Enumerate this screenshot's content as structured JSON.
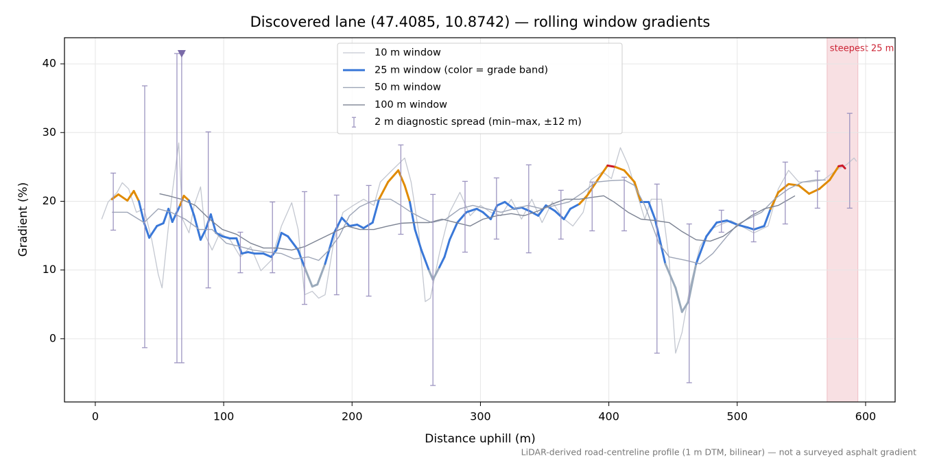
{
  "chart_data": {
    "type": "line",
    "title": "Discovered lane (47.4085, 10.8742) — rolling window gradients",
    "xlabel": "Distance uphill (m)",
    "ylabel": "Gradient (%)",
    "note": "LiDAR-derived road-centreline profile (1 m DTM, bilinear) — not a surveyed asphalt gradient",
    "xlim": [
      -24,
      623
    ],
    "ylim": [
      -9.2,
      43.8
    ],
    "xticks": [
      0,
      100,
      200,
      300,
      400,
      500,
      600
    ],
    "yticks": [
      0,
      10,
      20,
      30,
      40
    ],
    "grid": true,
    "legend": "upper center",
    "grade_band_edges": [
      10,
      20,
      25
    ],
    "grade_band_colors": [
      "#9aaabb",
      "#3a78d8",
      "#e08a00",
      "#cc1a2a"
    ],
    "highlight": {
      "label": "steepest 25 m",
      "from": 570,
      "to": 594,
      "color": "#e8a0a8"
    },
    "series": [
      {
        "name": "10 m window",
        "color": "#c3c7d0",
        "linewidth": 1.3,
        "x": [
          5,
          10,
          17,
          21,
          26,
          32,
          38,
          44,
          49,
          52,
          57,
          60,
          65,
          68,
          73,
          77,
          82,
          86,
          91,
          97,
          105,
          113,
          121,
          129,
          137,
          145,
          153,
          158,
          163,
          169,
          174,
          179,
          186,
          193,
          201,
          209,
          217,
          222,
          230,
          241,
          246,
          252,
          257,
          261,
          268,
          276,
          284,
          292,
          300,
          308,
          316,
          324,
          332,
          340,
          348,
          356,
          364,
          372,
          380,
          386,
          395,
          402,
          409,
          415,
          420,
          428,
          433,
          441,
          447,
          452,
          457,
          463,
          471,
          479,
          487,
          495,
          503,
          513,
          524,
          532,
          540,
          548,
          556,
          567,
          577,
          585,
          591,
          593
        ],
        "values": [
          17.4,
          19.9,
          21.3,
          22.7,
          21.8,
          18.4,
          18.9,
          14.4,
          9.4,
          7.4,
          16.4,
          21.3,
          28.5,
          17.4,
          15.4,
          19.4,
          22.1,
          14.9,
          12.9,
          15.4,
          14.4,
          11.9,
          13.4,
          9.9,
          11.4,
          16.4,
          19.8,
          15.9,
          6.4,
          6.9,
          5.9,
          6.4,
          14.4,
          18.4,
          19.4,
          20.3,
          19.4,
          22.8,
          24.3,
          26.3,
          22.8,
          15.4,
          5.4,
          5.9,
          12.4,
          18.4,
          21.3,
          17.9,
          19.4,
          18.4,
          17.9,
          20.3,
          17.4,
          20.3,
          16.9,
          19.9,
          17.6,
          16.4,
          18.4,
          23.1,
          24.3,
          23.3,
          27.8,
          25.3,
          22.3,
          17.4,
          20.3,
          20.3,
          11.4,
          -2.1,
          0.9,
          7.4,
          13.4,
          15.9,
          16.6,
          17.2,
          16.4,
          15.4,
          16.4,
          21.8,
          24.5,
          22.8,
          22.8,
          23.1,
          24.5,
          25.3,
          26.3,
          25.8
        ]
      },
      {
        "name": "25 m window (color = grade band)",
        "color": "#3a78d8",
        "linewidth": 3,
        "banded": true,
        "x": [
          13,
          18,
          25,
          30,
          34,
          38,
          42,
          48,
          53,
          57,
          60,
          66,
          69,
          73,
          77,
          82,
          86,
          90,
          94,
          99,
          105,
          110,
          114,
          119,
          124,
          131,
          137,
          141,
          145,
          150,
          158,
          163,
          169,
          173,
          179,
          186,
          192,
          198,
          204,
          209,
          216,
          221,
          228,
          236,
          241,
          245,
          249,
          254,
          260,
          263,
          268,
          272,
          276,
          282,
          289,
          297,
          302,
          308,
          313,
          319,
          326,
          332,
          338,
          345,
          351,
          358,
          365,
          370,
          377,
          383,
          392,
          399,
          405,
          412,
          420,
          425,
          431,
          436,
          444,
          452,
          457,
          462,
          468,
          476,
          484,
          492,
          500,
          508,
          513,
          521,
          526,
          532,
          540,
          548,
          556,
          564,
          572,
          579,
          582,
          584
        ],
        "values": [
          20.3,
          21,
          20.1,
          21.5,
          20,
          16.9,
          14.7,
          16.4,
          16.8,
          18.9,
          17,
          19.4,
          20.8,
          20.1,
          17.9,
          14.4,
          15.9,
          18.1,
          15.4,
          14.9,
          14.6,
          14.6,
          12.4,
          12.6,
          12.4,
          12.4,
          11.9,
          12.9,
          15.4,
          14.9,
          12.9,
          10.4,
          7.6,
          7.9,
          10.9,
          15.4,
          17.6,
          16.4,
          16.6,
          16.1,
          16.9,
          20.3,
          22.8,
          24.5,
          22.3,
          19.9,
          15.9,
          12.9,
          9.9,
          8.6,
          10.4,
          11.9,
          14.4,
          16.9,
          18.4,
          18.9,
          18.4,
          17.4,
          19.4,
          19.9,
          18.9,
          19.1,
          18.6,
          17.9,
          19.4,
          18.6,
          17.4,
          18.9,
          19.6,
          20.8,
          23.3,
          25.2,
          25,
          24.5,
          22.8,
          19.9,
          19.9,
          17.4,
          10.9,
          7.4,
          3.9,
          5.4,
          10.9,
          14.9,
          16.9,
          17.2,
          16.6,
          16.2,
          15.9,
          16.4,
          18.9,
          21.3,
          22.5,
          22.3,
          21.1,
          21.8,
          23.1,
          25.1,
          25.2,
          24.8
        ]
      },
      {
        "name": "50 m window",
        "color": "#9ca4b6",
        "linewidth": 1.4,
        "x": [
          13,
          25,
          38,
          49,
          59,
          70,
          81,
          91,
          102,
          113,
          123,
          134,
          145,
          155,
          166,
          174,
          182,
          190,
          198,
          206,
          214,
          222,
          230,
          238,
          246,
          254,
          262,
          273,
          284,
          294,
          305,
          316,
          326,
          337,
          348,
          358,
          369,
          380,
          390,
          401,
          412,
          420,
          428,
          439,
          447,
          460,
          471,
          481,
          492,
          500,
          508,
          519,
          529,
          540,
          551,
          561,
          569
        ],
        "values": [
          18.4,
          18.4,
          16.9,
          18.9,
          18.4,
          17.4,
          15.9,
          15.9,
          13.9,
          13.4,
          12.9,
          12.6,
          12.4,
          11.6,
          11.9,
          11.4,
          12.9,
          14.9,
          17.9,
          19.2,
          19.9,
          20.3,
          20.3,
          19.4,
          18.4,
          17.6,
          16.9,
          17.4,
          18.9,
          19.4,
          18.9,
          18.4,
          18.9,
          19.4,
          18.9,
          19.4,
          19.9,
          21.3,
          22.8,
          23,
          23.1,
          22.3,
          19.4,
          13.9,
          11.9,
          11.4,
          10.9,
          12.4,
          14.9,
          16.6,
          17.4,
          18.4,
          20.3,
          21.8,
          22.8,
          23.1,
          23.1
        ]
      },
      {
        "name": "100 m window",
        "color": "#7b8292",
        "linewidth": 1.4,
        "x": [
          50,
          57,
          67,
          78,
          89,
          99,
          110,
          121,
          131,
          142,
          153,
          163,
          174,
          185,
          196,
          206,
          217,
          228,
          238,
          249,
          260,
          270,
          281,
          292,
          302,
          313,
          324,
          334,
          345,
          356,
          366,
          377,
          388,
          396,
          404,
          415,
          425,
          436,
          447,
          457,
          468,
          479,
          489,
          500,
          511,
          521,
          532,
          545
        ],
        "values": [
          21.1,
          20.8,
          20.3,
          19.4,
          17.4,
          15.9,
          15.2,
          13.9,
          13.2,
          13.2,
          12.9,
          13.4,
          14.4,
          15.4,
          16.4,
          15.9,
          15.9,
          16.4,
          16.8,
          16.9,
          16.9,
          17.4,
          16.9,
          16.4,
          17.4,
          17.9,
          18.2,
          17.9,
          18.6,
          19.6,
          20.3,
          20.3,
          20.6,
          20.8,
          19.9,
          18.4,
          17.4,
          17.2,
          16.9,
          15.6,
          14.4,
          14.2,
          14.9,
          16.4,
          17.9,
          18.9,
          19.4,
          20.8
        ]
      }
    ],
    "spread": {
      "name": "2 m diagnostic spread (min–max, ±12 m)",
      "color": "#9c94c0",
      "x": [
        14,
        38.5,
        63.6,
        67.3,
        88,
        113,
        138,
        163,
        188,
        213,
        238,
        263,
        288,
        312.5,
        337.6,
        362.7,
        387,
        412,
        437.5,
        462.6,
        487.7,
        512.8,
        537.4,
        562.5,
        587.6
      ],
      "low": [
        15.8,
        -1.3,
        -3.5,
        -3.5,
        7.4,
        9.6,
        9.6,
        5,
        6.4,
        6.2,
        15.2,
        -6.8,
        12.6,
        14.5,
        12.5,
        14.5,
        15.7,
        15.7,
        -2.1,
        -6.4,
        15.5,
        14.1,
        16.7,
        19,
        19
      ],
      "high": [
        24.1,
        36.8,
        41.5,
        41.5,
        30.1,
        15.5,
        19.9,
        21.4,
        20.9,
        22.3,
        28.2,
        21,
        22.9,
        23.4,
        25.3,
        21.6,
        22.8,
        23.5,
        22.5,
        16.7,
        18.7,
        18.6,
        25.7,
        24.4,
        32.8
      ]
    },
    "clipped_marker": {
      "x": 67.3,
      "y": 41.5,
      "color": "#7a6aa8"
    }
  }
}
